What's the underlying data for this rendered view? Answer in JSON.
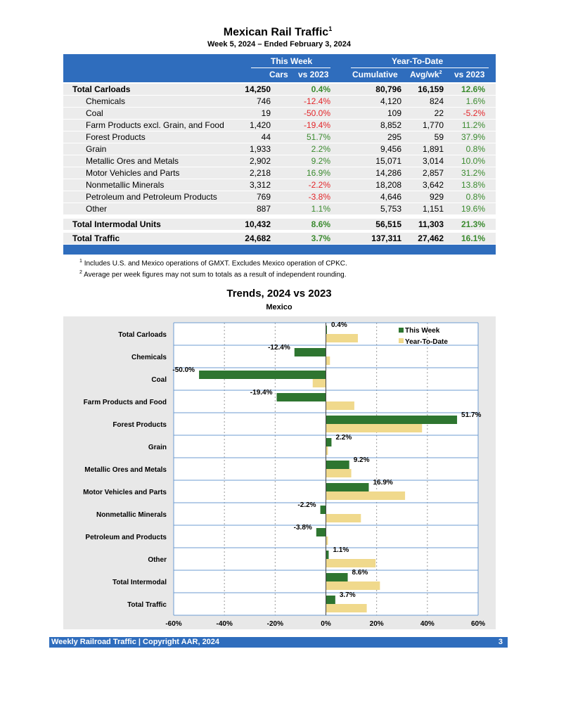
{
  "title": "Mexican Rail Traffic",
  "title_sup": "1",
  "subtitle": "Week 5, 2024 – Ended February 3, 2024",
  "table": {
    "group_this_week": "This Week",
    "group_ytd": "Year-To-Date",
    "col_cars": "Cars",
    "col_vs1": "vs 2023",
    "col_cum": "Cumulative",
    "col_avg": "Avg/wk",
    "col_avg_sup": "2",
    "col_vs2": "vs 2023",
    "rows": [
      {
        "label": "Total Carloads",
        "cars": "14,250",
        "vs": "0.4%",
        "cum": "80,796",
        "avg": "16,159",
        "vs_ytd": "12.6%",
        "bold": true
      },
      {
        "label": "Chemicals",
        "cars": "746",
        "vs": "-12.4%",
        "cum": "4,120",
        "avg": "824",
        "vs_ytd": "1.6%"
      },
      {
        "label": "Coal",
        "cars": "19",
        "vs": "-50.0%",
        "cum": "109",
        "avg": "22",
        "vs_ytd": "-5.2%"
      },
      {
        "label": "Farm Products excl. Grain, and Food",
        "cars": "1,420",
        "vs": "-19.4%",
        "cum": "8,852",
        "avg": "1,770",
        "vs_ytd": "11.2%"
      },
      {
        "label": "Forest Products",
        "cars": "44",
        "vs": "51.7%",
        "cum": "295",
        "avg": "59",
        "vs_ytd": "37.9%"
      },
      {
        "label": "Grain",
        "cars": "1,933",
        "vs": "2.2%",
        "cum": "9,456",
        "avg": "1,891",
        "vs_ytd": "0.8%"
      },
      {
        "label": "Metallic Ores and Metals",
        "cars": "2,902",
        "vs": "9.2%",
        "cum": "15,071",
        "avg": "3,014",
        "vs_ytd": "10.0%"
      },
      {
        "label": "Motor Vehicles and Parts",
        "cars": "2,218",
        "vs": "16.9%",
        "cum": "14,286",
        "avg": "2,857",
        "vs_ytd": "31.2%"
      },
      {
        "label": "Nonmetallic Minerals",
        "cars": "3,312",
        "vs": "-2.2%",
        "cum": "18,208",
        "avg": "3,642",
        "vs_ytd": "13.8%"
      },
      {
        "label": "Petroleum and Petroleum Products",
        "cars": "769",
        "vs": "-3.8%",
        "cum": "4,646",
        "avg": "929",
        "vs_ytd": "0.8%"
      },
      {
        "label": "Other",
        "cars": "887",
        "vs": "1.1%",
        "cum": "5,753",
        "avg": "1,151",
        "vs_ytd": "19.6%"
      },
      {
        "label": "Total Intermodal Units",
        "cars": "10,432",
        "vs": "8.6%",
        "cum": "56,515",
        "avg": "11,303",
        "vs_ytd": "21.3%",
        "bold": true
      },
      {
        "label": "Total Traffic",
        "cars": "24,682",
        "vs": "3.7%",
        "cum": "137,311",
        "avg": "27,462",
        "vs_ytd": "16.1%",
        "bold": true
      }
    ]
  },
  "notes": [
    {
      "sup": "1",
      "text": "Includes U.S. and Mexico operations of GMXT. Excludes Mexico operation of CPKC."
    },
    {
      "sup": "2",
      "text": "Average per week figures may not sum to totals as a result of independent rounding."
    }
  ],
  "chart_data": {
    "type": "bar",
    "orientation": "horizontal",
    "title": "Trends, 2024 vs 2023",
    "subtitle": "Mexico",
    "categories": [
      "Total Carloads",
      "Chemicals",
      "Coal",
      "Farm Products and Food",
      "Forest Products",
      "Grain",
      "Metallic Ores and Metals",
      "Motor Vehicles and Parts",
      "Nonmetallic Minerals",
      "Petroleum and Products",
      "Other",
      "Total Intermodal",
      "Total Traffic"
    ],
    "series": [
      {
        "name": "This Week",
        "color": "#2e7530",
        "values": [
          0.4,
          -12.4,
          -50.0,
          -19.4,
          51.7,
          2.2,
          9.2,
          16.9,
          -2.2,
          -3.8,
          1.1,
          8.6,
          3.7
        ],
        "labels": [
          "0.4%",
          "-12.4%",
          "-50.0%",
          "-19.4%",
          "51.7%",
          "2.2%",
          "9.2%",
          "16.9%",
          "-2.2%",
          "-3.8%",
          "1.1%",
          "8.6%",
          "3.7%"
        ]
      },
      {
        "name": "Year-To-Date",
        "color": "#f0d98c",
        "values": [
          12.6,
          1.6,
          -5.2,
          11.2,
          37.9,
          0.8,
          10.0,
          31.2,
          13.8,
          0.8,
          19.6,
          21.3,
          16.1
        ]
      }
    ],
    "xlim": [
      -60,
      60
    ],
    "xticks": [
      "-60%",
      "-40%",
      "-20%",
      "0%",
      "20%",
      "40%",
      "60%"
    ],
    "legend": "top-right"
  },
  "footer": {
    "text": "Weekly Railroad Traffic | Copyright AAR, 2024",
    "page": "3"
  }
}
